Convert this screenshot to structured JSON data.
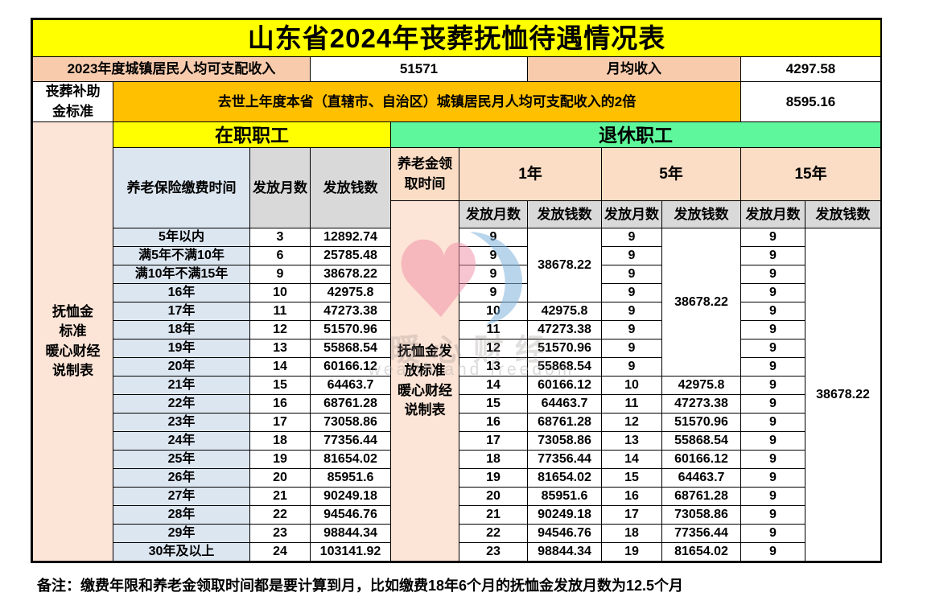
{
  "title": "山东省2024年丧葬抚恤待遇情况表",
  "summary": {
    "income_label": "2023年度城镇居民人均可支配收入",
    "income_value": "51571",
    "monthly_income_label": "月均收入",
    "monthly_income_value": "4297.58",
    "funeral_subsidy_label": "丧葬补助\n金标准",
    "funeral_subsidy_formula": "去世上年度本省（直辖市、自治区）城镇居民月人均可支配收入的2倍",
    "funeral_subsidy_value": "8595.16"
  },
  "table_headers": {
    "active_section": "在职职工",
    "retired_section": "退休职工",
    "left_label": "抚恤金\n标准\n暖心财经\n说制表",
    "mid_label": "抚恤金发\n放标准\n暖心财经\n说制表",
    "contribution_time": "养老保险缴费时间",
    "months": "发放月数",
    "amount": "发放钱数",
    "pension_time": "养老金领\n取时间",
    "y1": "1年",
    "y5": "5年",
    "y15": "15年"
  },
  "chart_data": {
    "type": "table",
    "title": "山东省2024年丧葬抚恤待遇情况表",
    "periods": [
      "5年以内",
      "满5年不满10年",
      "满10年不满15年",
      "16年",
      "17年",
      "18年",
      "19年",
      "20年",
      "21年",
      "22年",
      "23年",
      "24年",
      "25年",
      "26年",
      "27年",
      "28年",
      "29年",
      "30年及以上"
    ],
    "active": {
      "months": [
        "3",
        "6",
        "9",
        "10",
        "11",
        "12",
        "13",
        "14",
        "15",
        "16",
        "17",
        "18",
        "19",
        "20",
        "21",
        "22",
        "23",
        "24"
      ],
      "amounts": [
        "12892.74",
        "25785.48",
        "38678.22",
        "42975.8",
        "47273.38",
        "51570.96",
        "55868.54",
        "60166.12",
        "64463.7",
        "68761.28",
        "73058.86",
        "77356.44",
        "81654.02",
        "85951.6",
        "90249.18",
        "94546.76",
        "98844.34",
        "103141.92"
      ]
    },
    "year1": {
      "months": [
        "9",
        "9",
        "9",
        "9",
        "10",
        "11",
        "12",
        "13",
        "14",
        "15",
        "16",
        "17",
        "18",
        "19",
        "20",
        "21",
        "22",
        "23"
      ],
      "merged_amount": "38678.22",
      "merged_rows": 4,
      "amounts": [
        "42975.8",
        "47273.38",
        "51570.96",
        "55868.54",
        "60166.12",
        "64463.7",
        "68761.28",
        "73058.86",
        "77356.44",
        "81654.02",
        "85951.6",
        "90249.18",
        "94546.76",
        "98844.34"
      ]
    },
    "year5": {
      "months": [
        "9",
        "9",
        "9",
        "9",
        "9",
        "9",
        "9",
        "9",
        "10",
        "11",
        "12",
        "13",
        "14",
        "15",
        "16",
        "17",
        "18",
        "19"
      ],
      "merged_amount": "38678.22",
      "merged_rows": 8,
      "amounts": [
        "42975.8",
        "47273.38",
        "51570.96",
        "55868.54",
        "60166.12",
        "64463.7",
        "68761.28",
        "73058.86",
        "77356.44",
        "81654.02"
      ]
    },
    "year15": {
      "months": [
        "9",
        "9",
        "9",
        "9",
        "9",
        "9",
        "9",
        "9",
        "9",
        "9",
        "9",
        "9",
        "9",
        "9",
        "9",
        "9",
        "9",
        "9"
      ],
      "merged_amount": "38678.22",
      "merged_rows": 18,
      "amounts": []
    }
  },
  "note": "备注：缴费年限和养老金领取时间都是要计算到月，比如缴费18年6个月的抚恤金发放月数为12.5个月",
  "watermark": {
    "logo": "heart-logo",
    "text_cn": "暖心财经",
    "text_en": "wealth and freedom"
  },
  "colors": {
    "title_bg": "#ffff00",
    "retired_bg": "#5ef79b",
    "formula_bg": "#ffc000",
    "label_peach": "#f8cbad",
    "header_peach": "#fbdcc4",
    "side_peach": "#fce4d6",
    "contribution_blue": "#dce6f1",
    "subheader_gray": "#d9d9d9"
  }
}
